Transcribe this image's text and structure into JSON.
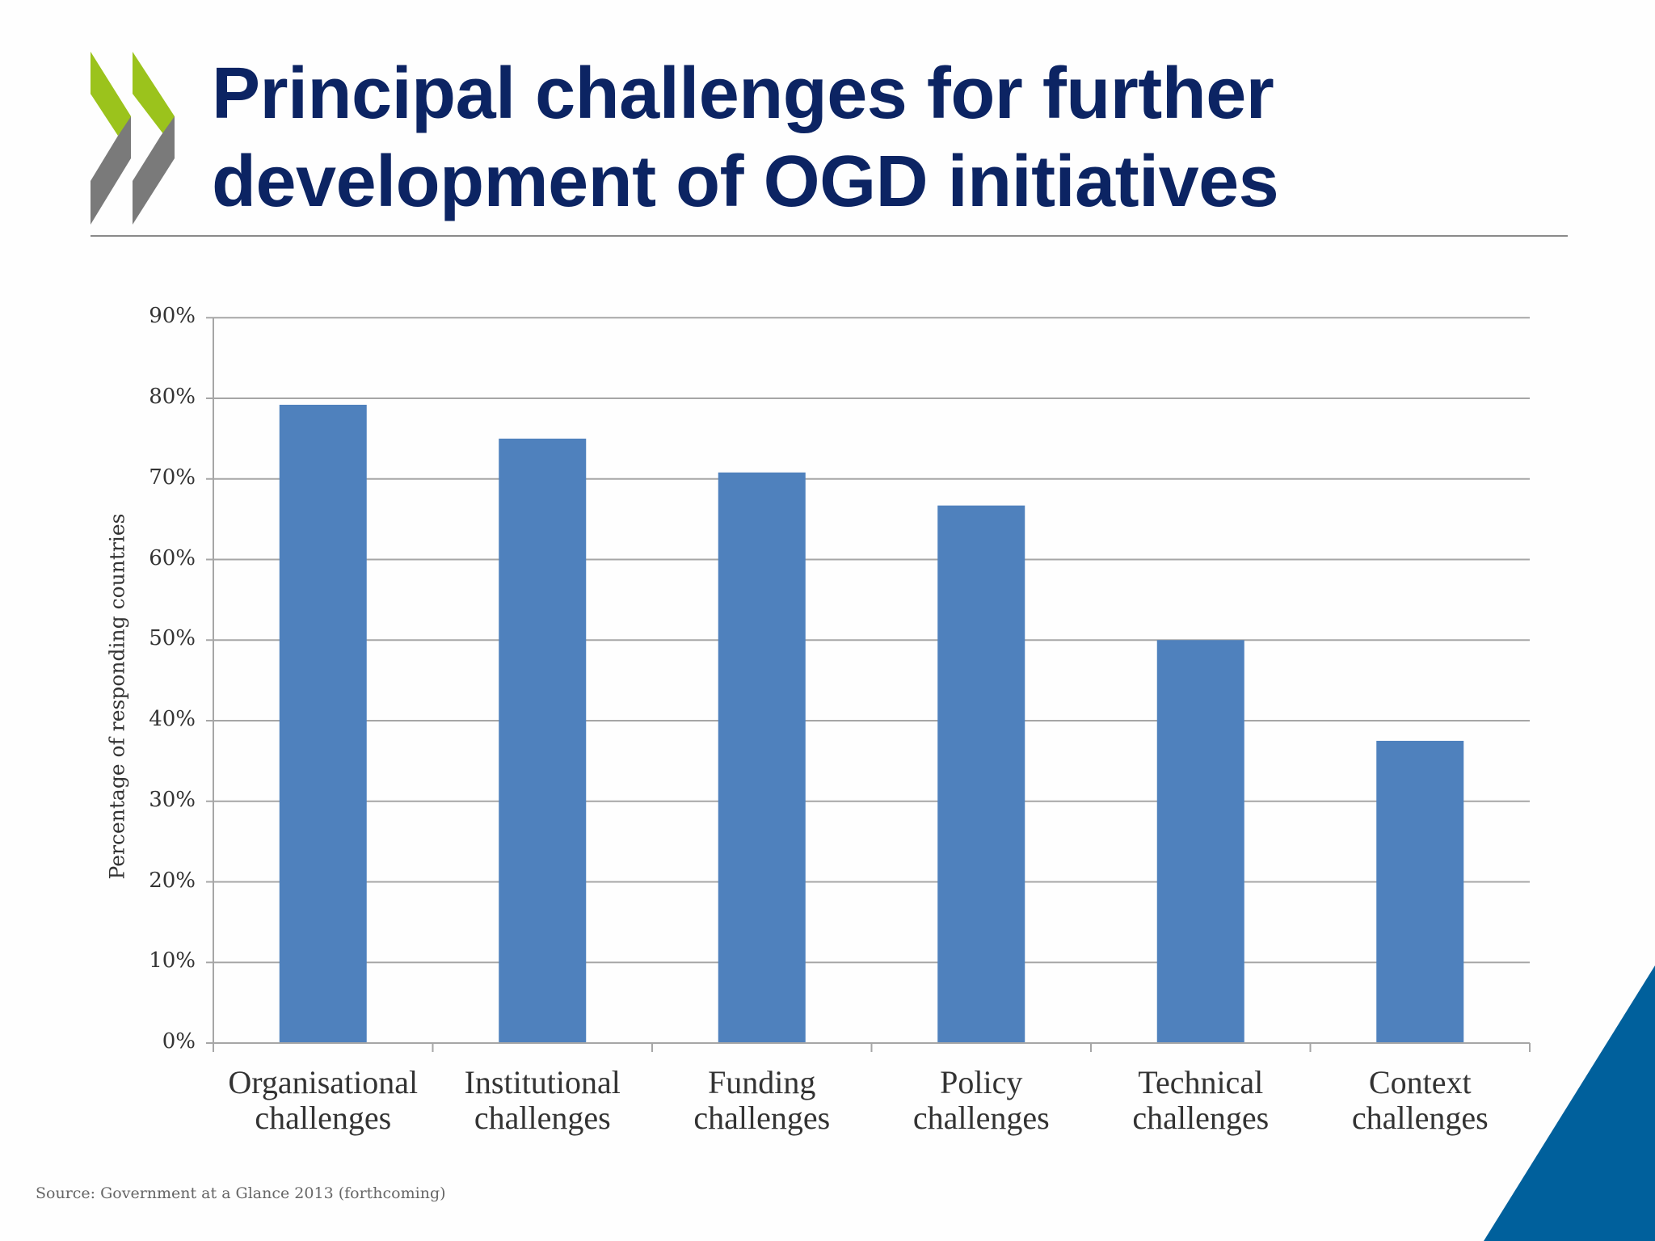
{
  "slide": {
    "title_lines": [
      "Principal challenges for further",
      "development of OGD initiatives"
    ],
    "source": "Source: Government at a Glance 2013 (forthcoming)",
    "colors": {
      "title": "#0c2463",
      "bar": "#4f81bd",
      "gridline": "#a6a6a6",
      "logo_green": "#9bc31c",
      "logo_gray": "#7a7a7a",
      "corner_blue": "#00609c"
    }
  },
  "chart_data": {
    "type": "bar",
    "title": "Principal challenges for further development of OGD initiatives",
    "xlabel": "",
    "ylabel": "Percentage of responding countries",
    "categories": [
      "Organisational challenges",
      "Institutional challenges",
      "Funding challenges",
      "Policy challenges",
      "Technical challenges",
      "Context challenges"
    ],
    "category_lines": [
      [
        "Organisational",
        "challenges"
      ],
      [
        "Institutional",
        "challenges"
      ],
      [
        "Funding",
        "challenges"
      ],
      [
        "Policy",
        "challenges"
      ],
      [
        "Technical",
        "challenges"
      ],
      [
        "Context",
        "challenges"
      ]
    ],
    "values": [
      79.2,
      75.0,
      70.8,
      66.7,
      50.0,
      37.5
    ],
    "value_unit": "%",
    "ylim": [
      0,
      90
    ],
    "yticks": [
      0,
      10,
      20,
      30,
      40,
      50,
      60,
      70,
      80,
      90
    ],
    "ytick_labels": [
      "0%",
      "10%",
      "20%",
      "30%",
      "40%",
      "50%",
      "60%",
      "70%",
      "80%",
      "90%"
    ],
    "grid": true,
    "legend": null,
    "source": "Source: Government at a Glance 2013 (forthcoming)"
  }
}
